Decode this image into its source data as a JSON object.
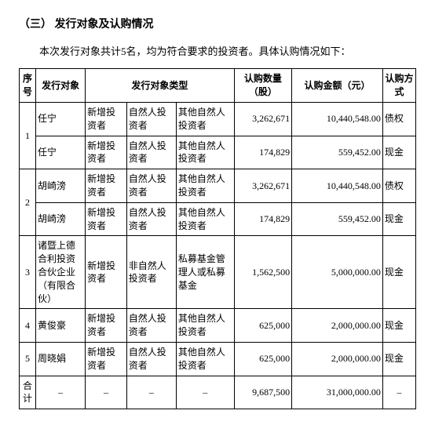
{
  "heading": "（三）  发行对象及认购情况",
  "intro": "本次发行对象共计5名，均为符合要求的投资者。具体认购情况如下：",
  "columns": {
    "idx": "序号",
    "obj": "发行对象",
    "type": "发行对象类型",
    "qty": "认购数量（股）",
    "amt": "认购金额（元）",
    "way": "认购方式"
  },
  "rows": [
    {
      "idx": "1",
      "obj": "任宁",
      "t1": "新增投资者",
      "t2": "自然人投资者",
      "t3": "其他自然人投资者",
      "qty": "3,262,671",
      "amt": "10,440,548.00",
      "way": "债权"
    },
    {
      "idx": "",
      "obj": "任宁",
      "t1": "新增投资者",
      "t2": "自然人投资者",
      "t3": "其他自然人投资者",
      "qty": "174,829",
      "amt": "559,452.00",
      "way": "现金"
    },
    {
      "idx": "2",
      "obj": "胡崎滂",
      "t1": "新增投资者",
      "t2": "自然人投资者",
      "t3": "其他自然人投资者",
      "qty": "3,262,671",
      "amt": "10,440,548.00",
      "way": "债权"
    },
    {
      "idx": "",
      "obj": "胡崎滂",
      "t1": "新增投资者",
      "t2": "自然人投资者",
      "t3": "其他自然人投资者",
      "qty": "174,829",
      "amt": "559,452.00",
      "way": "现金"
    },
    {
      "idx": "3",
      "obj": "诸暨上德合利投资合伙企业（有限合伙）",
      "t1": "新增投资者",
      "t2": "非自然人投资者",
      "t3": "私募基金管理人或私募基金",
      "qty": "1,562,500",
      "amt": "5,000,000.00",
      "way": "现金"
    },
    {
      "idx": "4",
      "obj": "黄俊豪",
      "t1": "新增投资者",
      "t2": "自然人投资者",
      "t3": "其他自然人投资者",
      "qty": "625,000",
      "amt": "2,000,000.00",
      "way": "现金"
    },
    {
      "idx": "5",
      "obj": "周晓娟",
      "t1": "新增投资者",
      "t2": "自然人投资者",
      "t3": "其他自然人投资者",
      "qty": "625,000",
      "amt": "2,000,000.00",
      "way": "现金"
    }
  ],
  "total": {
    "label": "合计",
    "dash": "–",
    "qty": "9,687,500",
    "amt": "31,000,000.00"
  }
}
